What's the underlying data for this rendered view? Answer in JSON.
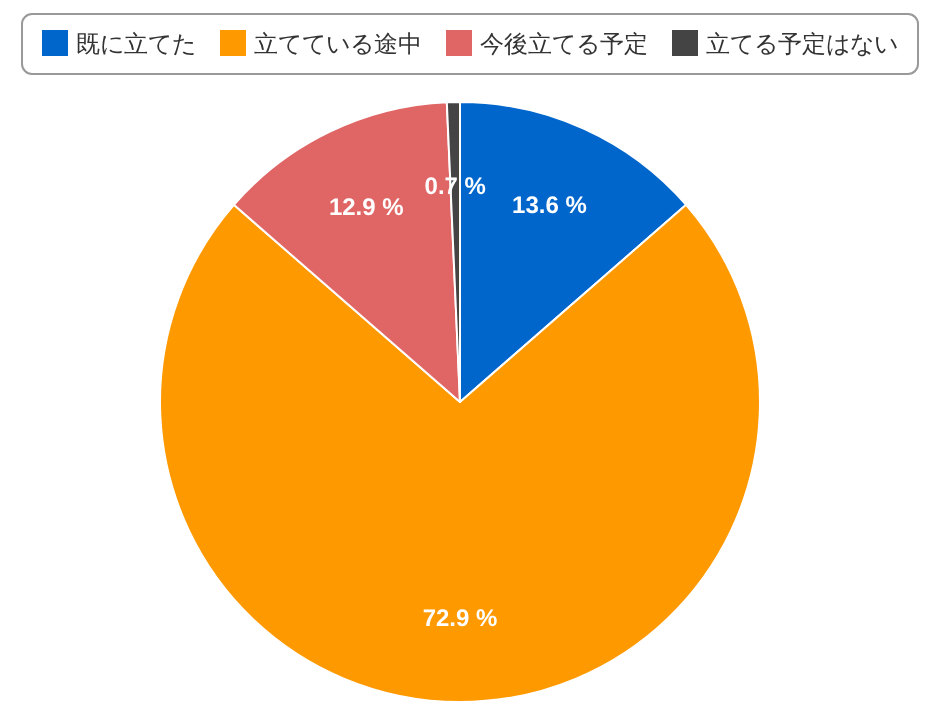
{
  "chart_data": {
    "type": "pie",
    "categories": [
      "既に立てた",
      "立てている途中",
      "今後立てる予定",
      "立てる予定はない"
    ],
    "values": [
      13.6,
      72.9,
      12.9,
      0.7
    ],
    "colors": [
      "#0066cc",
      "#ff9900",
      "#e06666",
      "#444444"
    ],
    "value_labels": [
      "13.6 %",
      "72.9 %",
      "12.9 %",
      "0.7 %"
    ],
    "legend": "top"
  }
}
